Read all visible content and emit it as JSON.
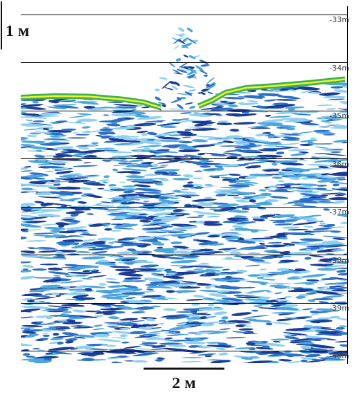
{
  "chart_data": {
    "type": "line",
    "x": [
      0,
      0.85,
      1.69,
      2.54,
      3.05,
      3.47,
      3.9,
      4.41,
      4.75,
      5.08,
      5.59,
      6.27,
      7.12,
      8.05
    ],
    "values": [
      -34.72,
      -34.69,
      -34.7,
      -34.76,
      -34.82,
      -34.93,
      null,
      -34.9,
      -34.78,
      -34.62,
      -34.52,
      -34.48,
      -34.42,
      -34.34
    ],
    "color": "#3cb44b",
    "xlim": [
      0,
      8.1
    ],
    "ylim": [
      -40.25,
      -32.83
    ],
    "yticks": [
      {
        "value": -33,
        "label": "-33m"
      },
      {
        "value": -34,
        "label": "-34m"
      },
      {
        "value": -35,
        "label": "-35m"
      },
      {
        "value": -36,
        "label": "-36m"
      },
      {
        "value": -37,
        "label": "-37m"
      },
      {
        "value": -38,
        "label": "-38m"
      },
      {
        "value": -39,
        "label": "-39m"
      },
      {
        "value": -40,
        "label": "-40m"
      }
    ],
    "grid": true,
    "tick_labels": "y",
    "annotations": [
      {
        "text": "1 м",
        "length": 1,
        "axis": "y"
      },
      {
        "text": "2 м",
        "length": 2,
        "axis": "x"
      }
    ],
    "target": {
      "x": 4.1,
      "top": -33.3
    }
  }
}
